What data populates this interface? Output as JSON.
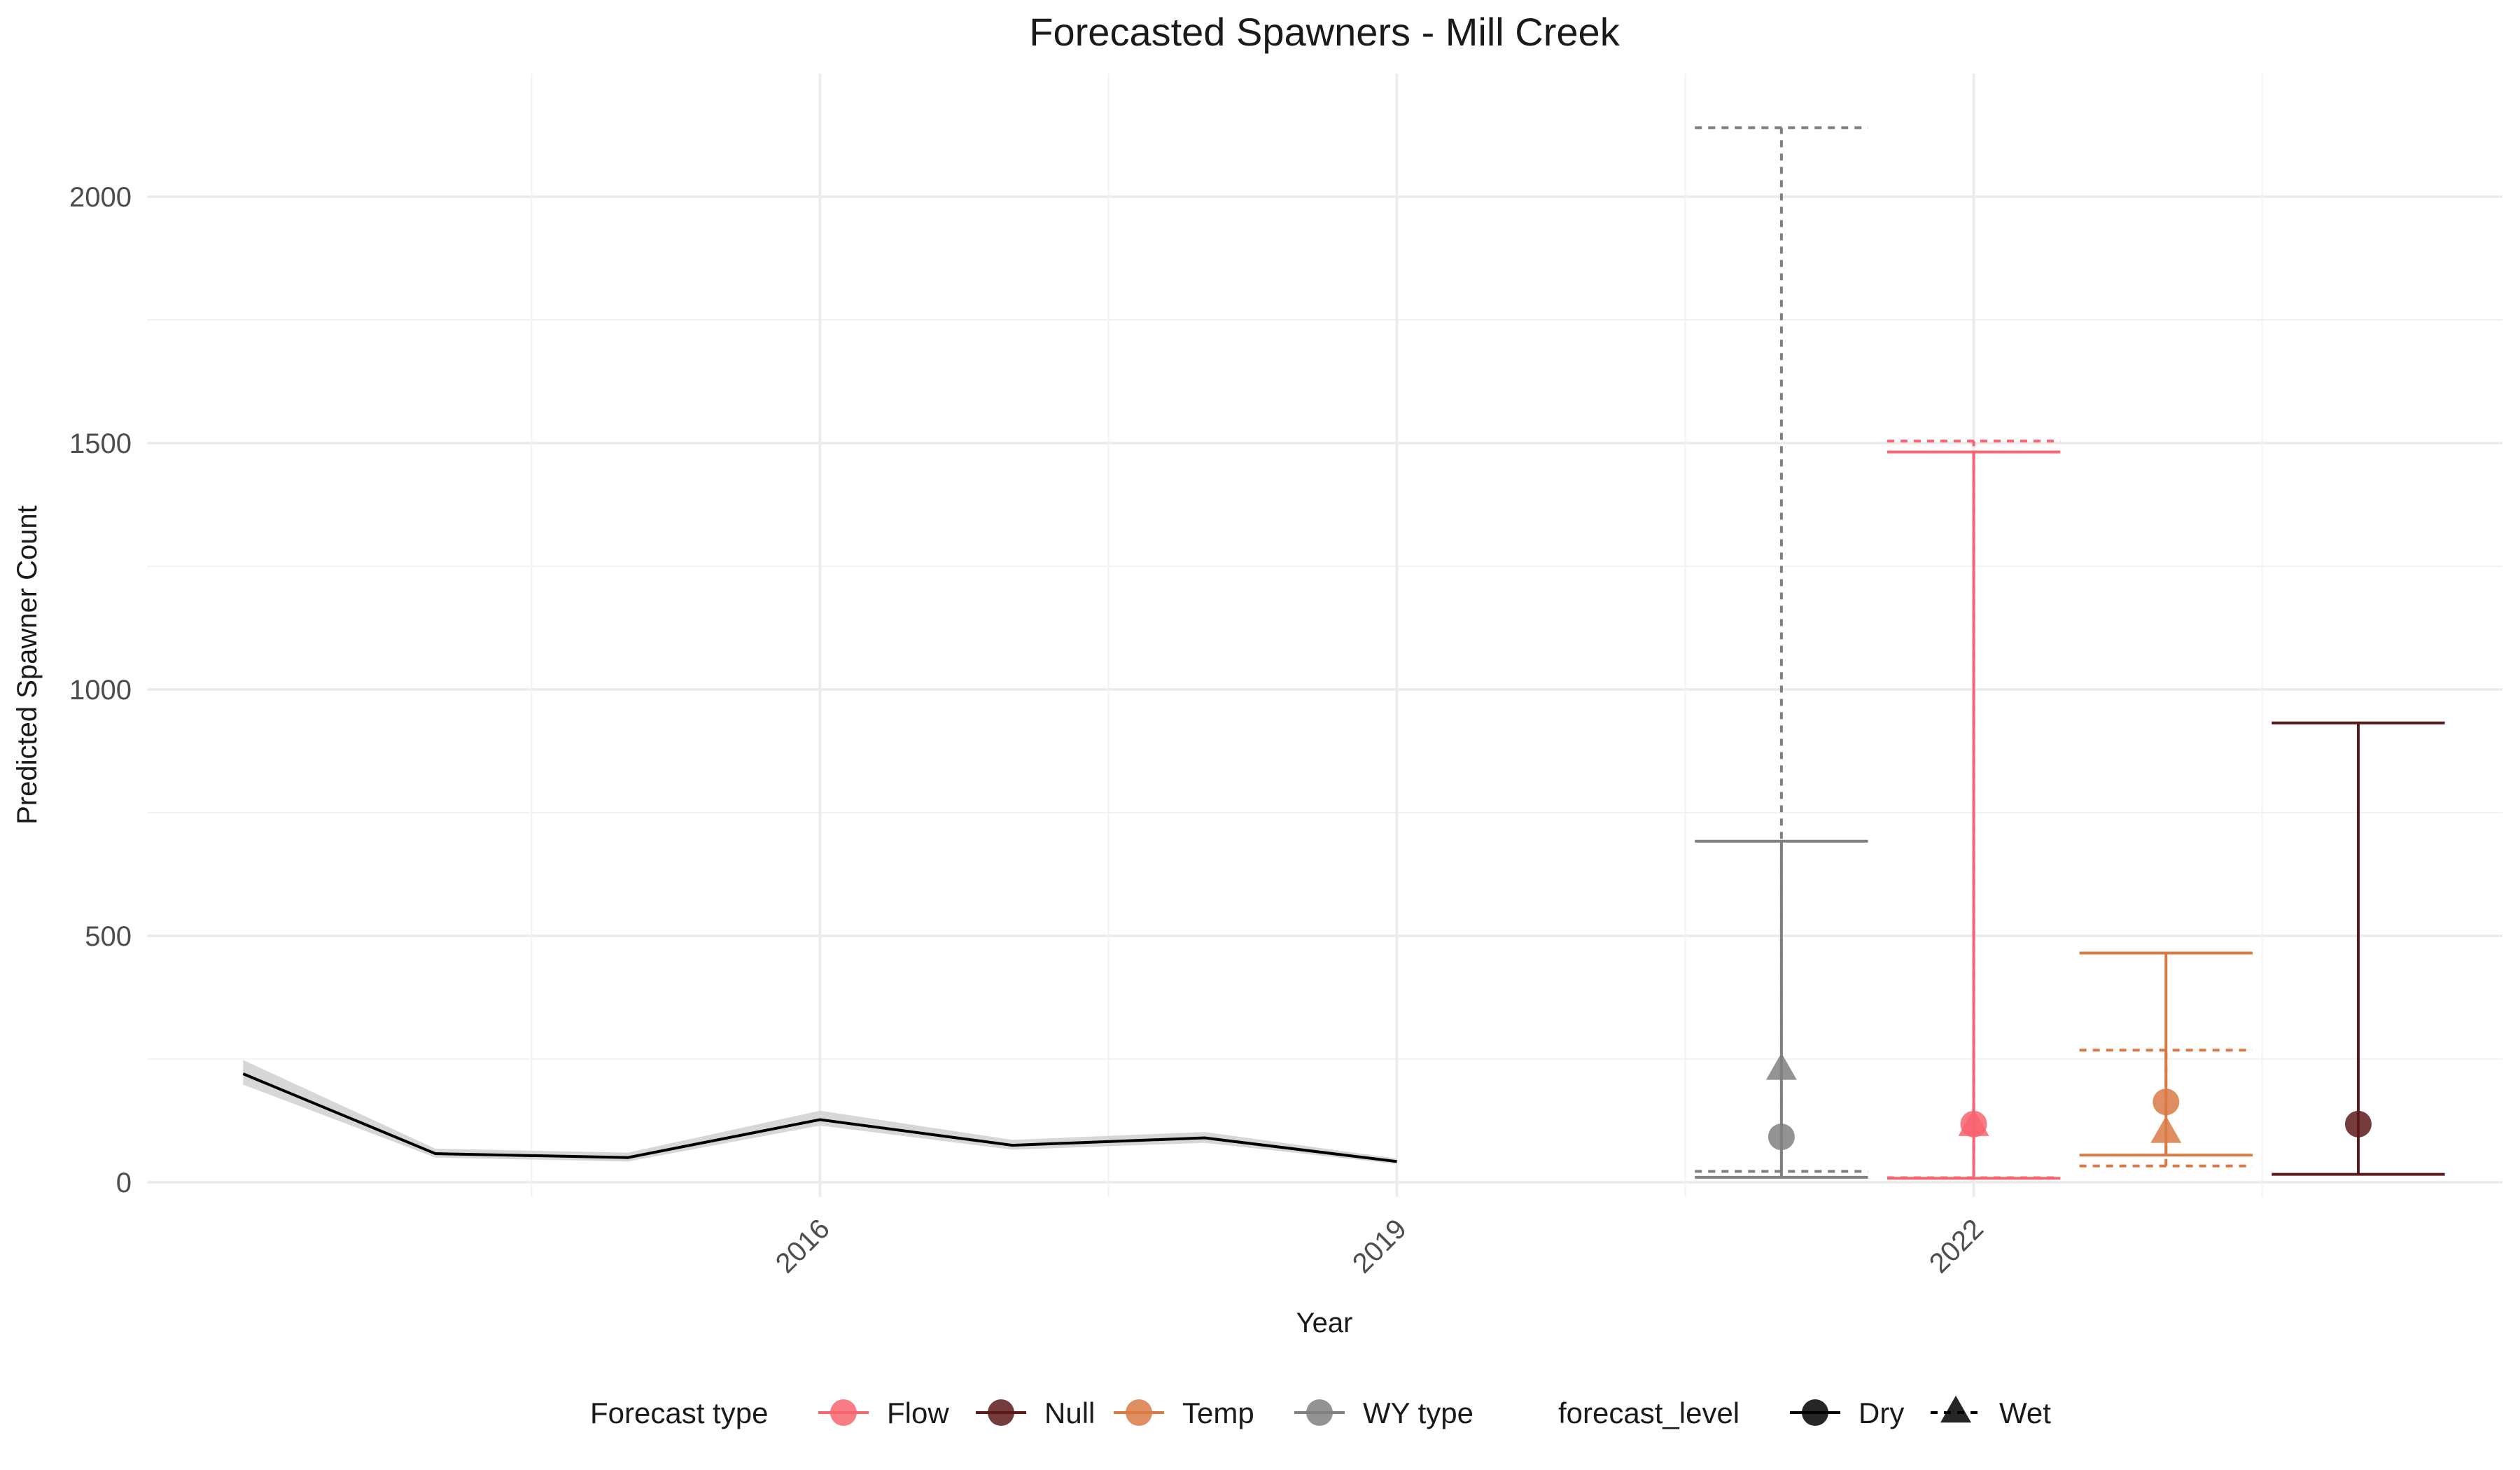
{
  "chart_data": {
    "type": "line",
    "title": "Forecasted Spawners - Mill Creek",
    "xlabel": "Year",
    "ylabel": "Predicted Spawner Count",
    "xlim": [
      2012.5,
      2024.75
    ],
    "ylim": [
      -30,
      2250
    ],
    "x_ticks": [
      2016,
      2019,
      2022
    ],
    "y_ticks": [
      0,
      500,
      1000,
      1500,
      2000
    ],
    "grid": true,
    "legend_position": "bottom",
    "historical": {
      "color": "#000000",
      "band_color": "#d3d3d3",
      "points": [
        {
          "x": 2013,
          "y": 220,
          "lo": 198,
          "hi": 248
        },
        {
          "x": 2014,
          "y": 58,
          "lo": 50,
          "hi": 68
        },
        {
          "x": 2015,
          "y": 50,
          "lo": 42,
          "hi": 60
        },
        {
          "x": 2016,
          "y": 127,
          "lo": 115,
          "hi": 145
        },
        {
          "x": 2017,
          "y": 75,
          "lo": 66,
          "hi": 86
        },
        {
          "x": 2018,
          "y": 90,
          "lo": 80,
          "hi": 102
        },
        {
          "x": 2019,
          "y": 42,
          "lo": 37,
          "hi": 48
        }
      ]
    },
    "forecasts": [
      {
        "type": "WY type",
        "level": "Dry",
        "x": 2021,
        "y": 92,
        "lo": 10,
        "hi": 692,
        "color": "#808080"
      },
      {
        "type": "WY type",
        "level": "Wet",
        "x": 2021,
        "y": 228,
        "lo": 22,
        "hi": 2140,
        "color": "#808080"
      },
      {
        "type": "Flow",
        "level": "Dry",
        "x": 2022,
        "y": 118,
        "lo": 8,
        "hi": 1482,
        "color": "#f8646f"
      },
      {
        "type": "Flow",
        "level": "Wet",
        "x": 2022,
        "y": 114,
        "lo": 9,
        "hi": 1504,
        "color": "#f8646f"
      },
      {
        "type": "Temp",
        "level": "Dry",
        "x": 2023,
        "y": 163,
        "lo": 55,
        "hi": 465,
        "color": "#d97a45"
      },
      {
        "type": "Temp",
        "level": "Wet",
        "x": 2023,
        "y": 100,
        "lo": 33,
        "hi": 268,
        "color": "#d97a45"
      },
      {
        "type": "Null",
        "level": "Dry",
        "x": 2024,
        "y": 118,
        "lo": 16,
        "hi": 932,
        "color": "#5c1a1b"
      }
    ],
    "legend": {
      "type_title": "Forecast type",
      "types": [
        {
          "label": "Flow",
          "color": "#f8646f"
        },
        {
          "label": "Null",
          "color": "#5c1a1b"
        },
        {
          "label": "Temp",
          "color": "#d97a45"
        },
        {
          "label": "WY type",
          "color": "#808080"
        }
      ],
      "level_title": "forecast_level",
      "levels": [
        {
          "label": "Dry",
          "shape": "circle",
          "line": "solid"
        },
        {
          "label": "Wet",
          "shape": "triangle",
          "line": "dashed"
        }
      ]
    }
  }
}
